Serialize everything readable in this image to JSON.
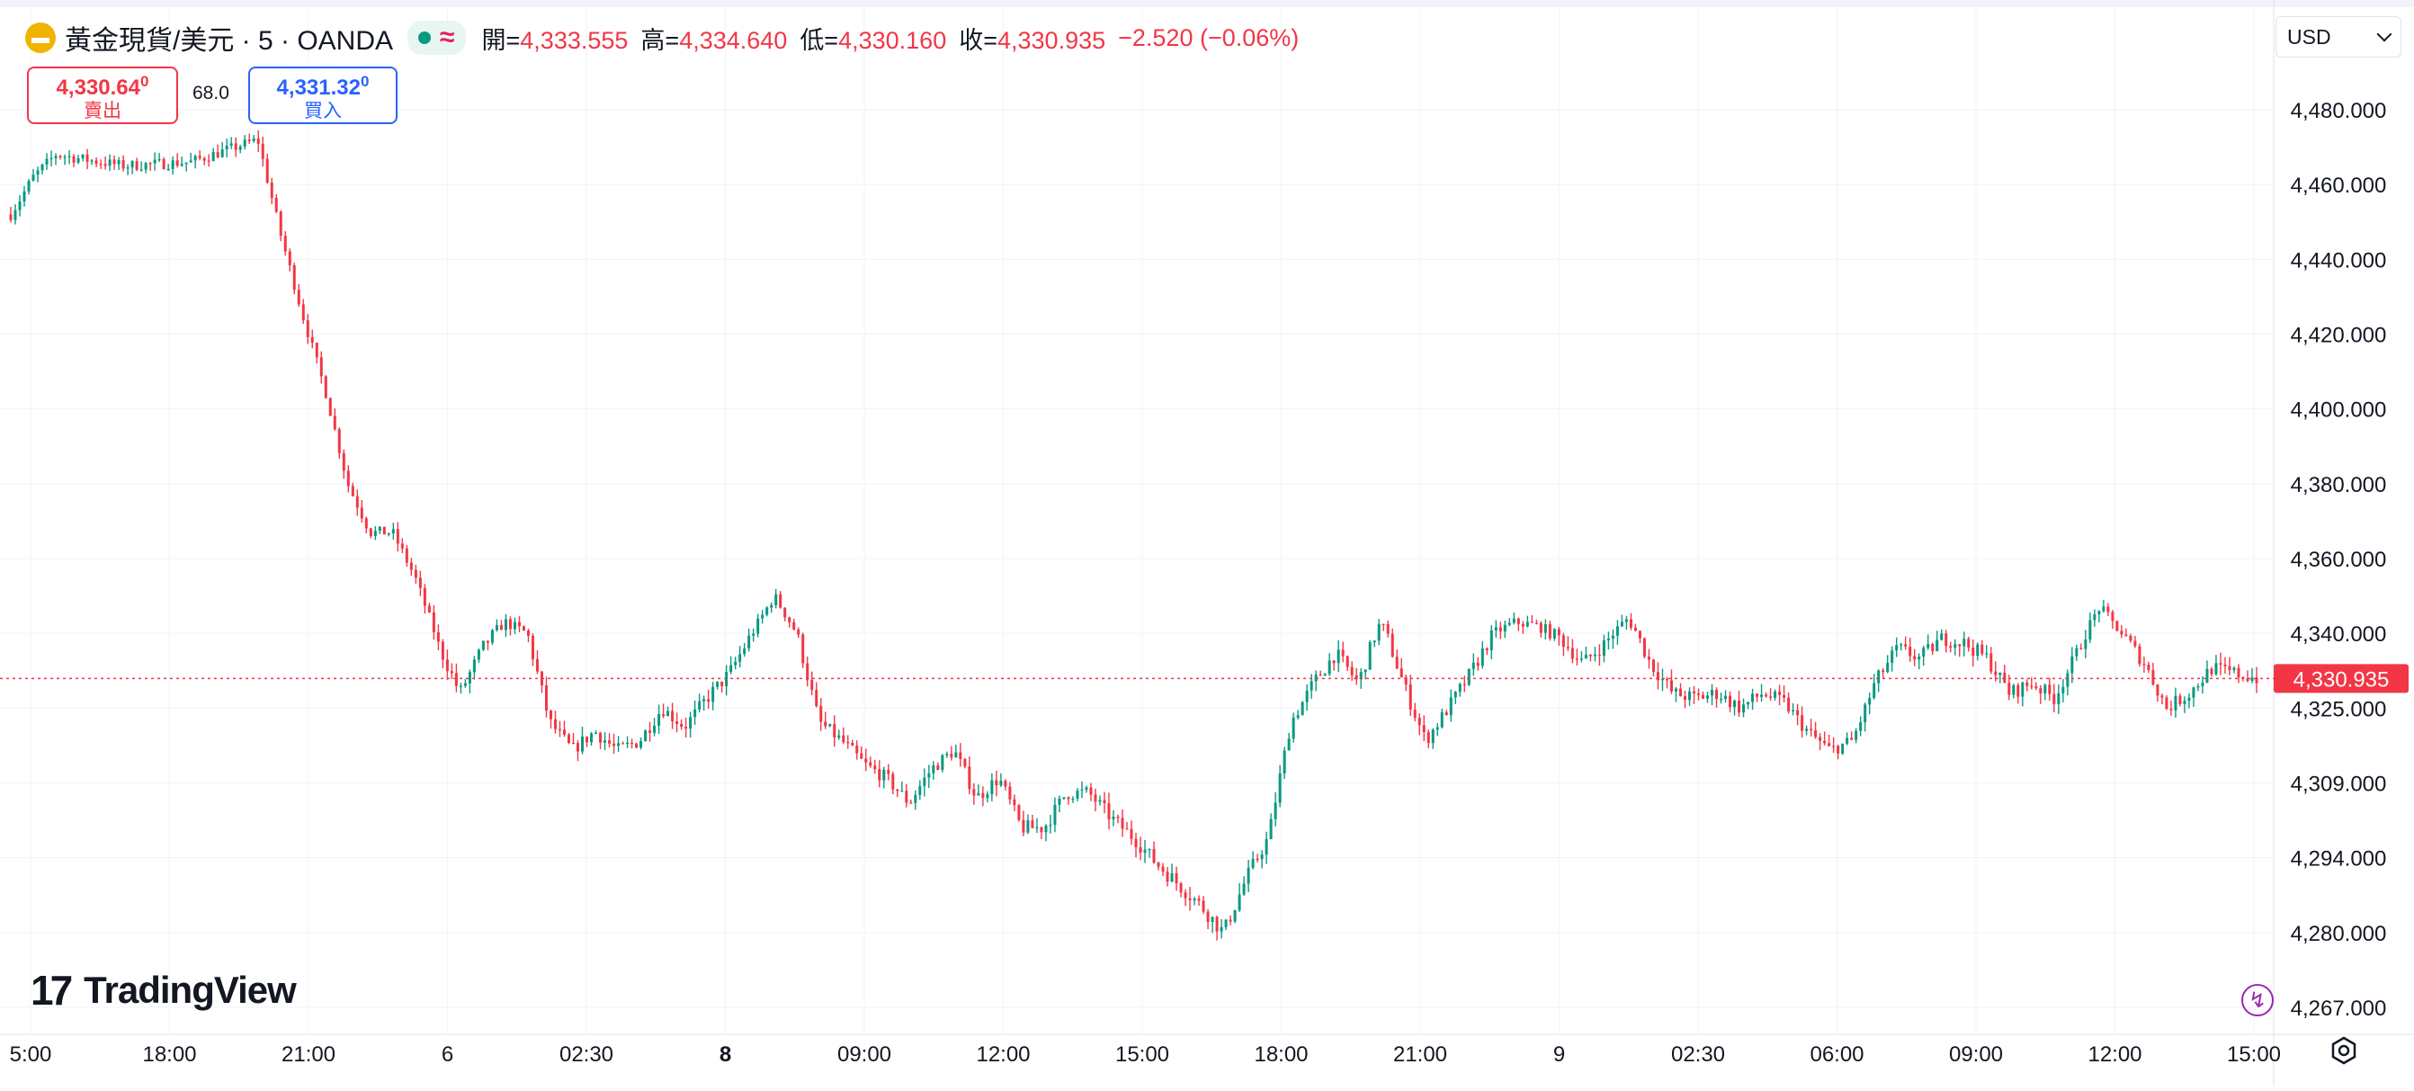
{
  "header": {
    "symbol_title": "黃金現貨/美元 · 5 · OANDA",
    "ohlc": [
      {
        "key": "開=",
        "value": "4,333.555"
      },
      {
        "key": "高=",
        "value": "4,334.640"
      },
      {
        "key": "低=",
        "value": "4,330.160"
      },
      {
        "key": "收=",
        "value": "4,330.935"
      }
    ],
    "change": "−2.520 (−0.06%)"
  },
  "trade": {
    "sell_price": "4,330.64",
    "sell_price_sup": "0",
    "sell_label": "賣出",
    "spread": "68.0",
    "buy_price": "4,331.32",
    "buy_price_sup": "0",
    "buy_label": "買入"
  },
  "currency": "USD",
  "logo_text": "TradingView",
  "icons": {
    "symbol": "gold-bars-icon",
    "status": "market-open-dot-icon",
    "wave": "delayed-data-wave-icon",
    "settings": "gear-icon",
    "flash": "lightning-icon"
  },
  "colors": {
    "up": "#089981",
    "down": "#f23645",
    "grid": "#f0f3fa",
    "price_line": "#f23645",
    "sell": "#f23645",
    "buy": "#2962ff"
  },
  "chart_data": {
    "type": "candlestick",
    "interval": "5",
    "last_price": 4330.935,
    "last_price_label": "4,330.935",
    "y_tick_labels": [
      "4,480.000",
      "4,460.000",
      "4,440.000",
      "4,420.000",
      "4,400.000",
      "4,380.000",
      "4,360.000",
      "4,340.000",
      "4,325.000",
      "4,309.000",
      "4,294.000",
      "4,280.000",
      "4,267.000"
    ],
    "y_tick_values": [
      4480,
      4460,
      4440,
      4420,
      4400,
      4380,
      4360,
      4340,
      4325,
      4309,
      4294,
      4280,
      4267
    ],
    "x_tick_labels": [
      "5:00",
      "18:00",
      "21:00",
      "6",
      "02:30",
      "8",
      "09:00",
      "12:00",
      "15:00",
      "18:00",
      "21:00",
      "9",
      "02:30",
      "06:00",
      "09:00",
      "12:00",
      "15:00"
    ],
    "x_tick_bold": [
      false,
      false,
      false,
      false,
      false,
      true,
      false,
      false,
      false,
      false,
      false,
      false,
      false,
      false,
      false,
      false,
      false
    ],
    "path_anchors": [
      [
        0,
        4452
      ],
      [
        0.01,
        4462
      ],
      [
        0.02,
        4468
      ],
      [
        0.05,
        4465
      ],
      [
        0.08,
        4466
      ],
      [
        0.1,
        4470
      ],
      [
        0.11,
        4472
      ],
      [
        0.12,
        4447
      ],
      [
        0.13,
        4425
      ],
      [
        0.14,
        4405
      ],
      [
        0.15,
        4380
      ],
      [
        0.16,
        4367
      ],
      [
        0.17,
        4367
      ],
      [
        0.18,
        4355
      ],
      [
        0.19,
        4338
      ],
      [
        0.2,
        4328
      ],
      [
        0.21,
        4337
      ],
      [
        0.22,
        4343
      ],
      [
        0.23,
        4340
      ],
      [
        0.24,
        4322
      ],
      [
        0.25,
        4316
      ],
      [
        0.26,
        4320
      ],
      [
        0.27,
        4316
      ],
      [
        0.28,
        4318
      ],
      [
        0.29,
        4325
      ],
      [
        0.3,
        4321
      ],
      [
        0.31,
        4327
      ],
      [
        0.32,
        4332
      ],
      [
        0.33,
        4340
      ],
      [
        0.34,
        4350
      ],
      [
        0.35,
        4340
      ],
      [
        0.36,
        4322
      ],
      [
        0.37,
        4318
      ],
      [
        0.38,
        4313
      ],
      [
        0.39,
        4310
      ],
      [
        0.4,
        4305
      ],
      [
        0.41,
        4312
      ],
      [
        0.42,
        4316
      ],
      [
        0.43,
        4306
      ],
      [
        0.44,
        4310
      ],
      [
        0.45,
        4300
      ],
      [
        0.46,
        4300
      ],
      [
        0.47,
        4307
      ],
      [
        0.48,
        4307
      ],
      [
        0.49,
        4302
      ],
      [
        0.5,
        4298
      ],
      [
        0.51,
        4293
      ],
      [
        0.52,
        4289
      ],
      [
        0.53,
        4285
      ],
      [
        0.54,
        4280
      ],
      [
        0.55,
        4290
      ],
      [
        0.56,
        4298
      ],
      [
        0.57,
        4322
      ],
      [
        0.58,
        4330
      ],
      [
        0.59,
        4336
      ],
      [
        0.6,
        4330
      ],
      [
        0.61,
        4343
      ],
      [
        0.62,
        4330
      ],
      [
        0.63,
        4318
      ],
      [
        0.64,
        4325
      ],
      [
        0.65,
        4332
      ],
      [
        0.66,
        4340
      ],
      [
        0.67,
        4343
      ],
      [
        0.68,
        4342
      ],
      [
        0.69,
        4339
      ],
      [
        0.7,
        4334
      ],
      [
        0.71,
        4338
      ],
      [
        0.72,
        4344
      ],
      [
        0.73,
        4334
      ],
      [
        0.74,
        4328
      ],
      [
        0.75,
        4327
      ],
      [
        0.76,
        4328
      ],
      [
        0.77,
        4325
      ],
      [
        0.78,
        4328
      ],
      [
        0.79,
        4326
      ],
      [
        0.8,
        4320
      ],
      [
        0.81,
        4316
      ],
      [
        0.82,
        4318
      ],
      [
        0.83,
        4330
      ],
      [
        0.84,
        4337
      ],
      [
        0.85,
        4335
      ],
      [
        0.86,
        4339
      ],
      [
        0.87,
        4338
      ],
      [
        0.88,
        4335
      ],
      [
        0.89,
        4328
      ],
      [
        0.9,
        4330
      ],
      [
        0.91,
        4327
      ],
      [
        0.92,
        4336
      ],
      [
        0.93,
        4347
      ],
      [
        0.94,
        4340
      ],
      [
        0.95,
        4334
      ],
      [
        0.96,
        4325
      ],
      [
        0.97,
        4328
      ],
      [
        0.98,
        4333
      ],
      [
        1.0,
        4331
      ]
    ]
  }
}
